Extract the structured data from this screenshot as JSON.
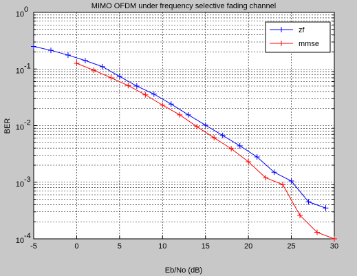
{
  "chart_data": {
    "type": "line",
    "title": "MIMO OFDM under frequency selective fading channel",
    "x_label": "Eb/No (dB)",
    "y_label": "BER",
    "xlim": [
      -5,
      30
    ],
    "xticks": [
      -5,
      0,
      5,
      10,
      15,
      20,
      25,
      30
    ],
    "ylim": [
      0.0001,
      1
    ],
    "yscale": "log",
    "yticks": [
      {
        "value": 0.0001,
        "base": "10",
        "exponent": "-4"
      },
      {
        "value": 0.001,
        "base": "10",
        "exponent": "-3"
      },
      {
        "value": 0.01,
        "base": "10",
        "exponent": "-2"
      },
      {
        "value": 0.1,
        "base": "10",
        "exponent": "-1"
      },
      {
        "value": 1,
        "base": "10",
        "exponent": "0"
      }
    ],
    "grid": true,
    "minor_grid": true,
    "legend": "top-right",
    "series": [
      {
        "name": "zf",
        "color": "#0000ff",
        "marker": "+",
        "x": [
          -5,
          -3,
          -1,
          1,
          3,
          5,
          7,
          9,
          11,
          13,
          15,
          17,
          19,
          21,
          23,
          25,
          27,
          29
        ],
        "values": [
          0.25,
          0.214,
          0.176,
          0.141,
          0.11,
          0.074,
          0.05,
          0.036,
          0.024,
          0.0155,
          0.0102,
          0.0067,
          0.0044,
          0.0028,
          0.0015,
          0.00105,
          0.00045,
          0.00035
        ]
      },
      {
        "name": "mmse",
        "color": "#ff0000",
        "marker": "+",
        "x": [
          0,
          2,
          4,
          6,
          8,
          10,
          12,
          14,
          16,
          18,
          20,
          22,
          24,
          26,
          28,
          30
        ],
        "values": [
          0.126,
          0.095,
          0.07,
          0.051,
          0.035,
          0.023,
          0.0155,
          0.0096,
          0.0061,
          0.0039,
          0.0023,
          0.0012,
          0.00091,
          0.00026,
          0.00013,
          0.0001
        ]
      }
    ]
  }
}
